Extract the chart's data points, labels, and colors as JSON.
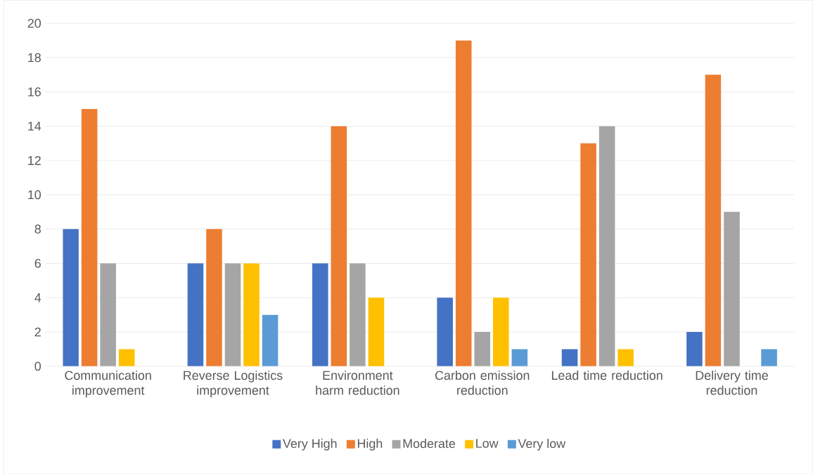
{
  "chart_data": {
    "type": "bar",
    "categories": [
      "Communication improvement",
      "Reverse Logistics improvement",
      "Environment harm reduction",
      "Carbon emission reduction",
      "Lead time reduction",
      "Delivery time reduction"
    ],
    "series": [
      {
        "name": "Very High",
        "color": "#4472c4",
        "values": [
          8,
          6,
          6,
          4,
          1,
          2
        ]
      },
      {
        "name": "High",
        "color": "#ed7d31",
        "values": [
          15,
          8,
          14,
          19,
          13,
          17
        ]
      },
      {
        "name": "Moderate",
        "color": "#a5a5a5",
        "values": [
          6,
          6,
          6,
          2,
          14,
          9
        ]
      },
      {
        "name": "Low",
        "color": "#ffc000",
        "values": [
          1,
          6,
          4,
          4,
          1,
          0
        ]
      },
      {
        "name": "Very low",
        "color": "#5b9bd5",
        "values": [
          0,
          3,
          0,
          1,
          0,
          1
        ]
      }
    ],
    "ylim": [
      0,
      20
    ],
    "yticks": [
      0,
      2,
      4,
      6,
      8,
      10,
      12,
      14,
      16,
      18,
      20
    ],
    "grid": "y",
    "legend": "bottom"
  }
}
